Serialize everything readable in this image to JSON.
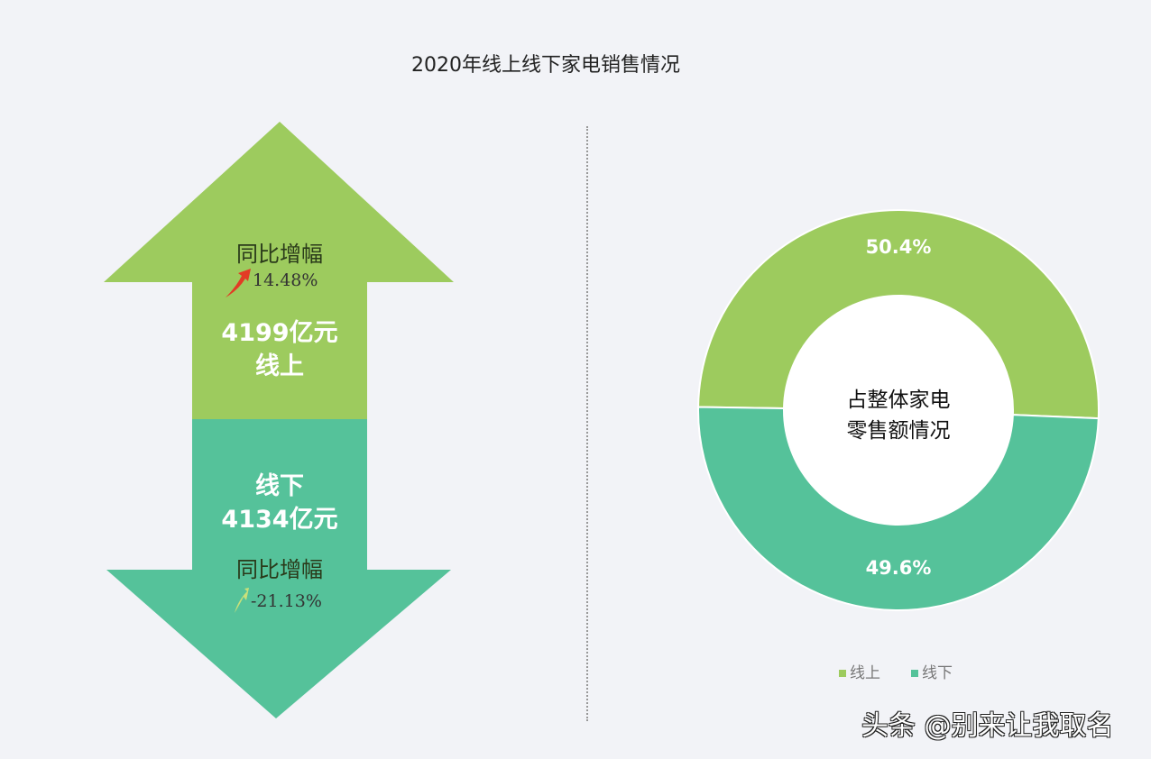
{
  "chart_data": [
    {
      "type": "infographic-arrows",
      "title": "2020年线上线下家电销售情况",
      "items": [
        {
          "label": "线上",
          "value_text": "4199亿元",
          "value": 4199,
          "unit": "亿元",
          "growth_label": "同比增幅",
          "growth_text": "14.48%",
          "growth": 14.48,
          "direction": "up",
          "color": "#9dcb5e"
        },
        {
          "label": "线下",
          "value_text": "4134亿元",
          "value": 4134,
          "unit": "亿元",
          "growth_label": "同比增幅",
          "growth_text": "-21.13%",
          "growth": -21.13,
          "direction": "down",
          "color": "#55c29a"
        }
      ]
    },
    {
      "type": "pie",
      "donut": true,
      "center_label_line1": "占整体家电",
      "center_label_line2": "零售额情况",
      "series": [
        {
          "name": "线上",
          "value": 50.4,
          "label": "50.4%",
          "color": "#9dcb5e"
        },
        {
          "name": "线下",
          "value": 49.6,
          "label": "49.6%",
          "color": "#55c29a"
        }
      ],
      "legend": "bottom"
    }
  ],
  "watermark": "头条 @别来让我取名"
}
